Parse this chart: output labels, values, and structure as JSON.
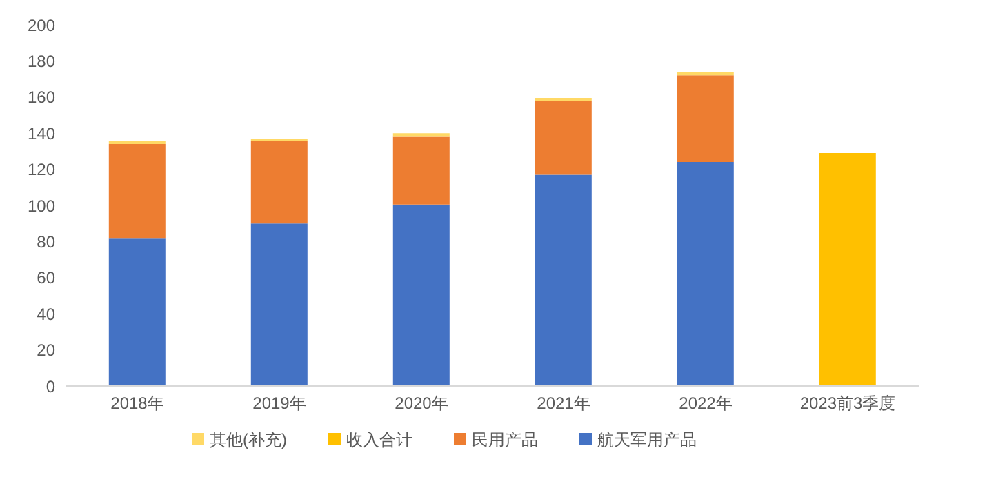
{
  "chart_data": {
    "type": "bar",
    "stacked": true,
    "categories": [
      "2018年",
      "2019年",
      "2020年",
      "2021年",
      "2022年",
      "2023前3季度"
    ],
    "series": [
      {
        "name": "航天军用产品",
        "color": "#4472c4",
        "values": [
          82,
          90,
          100.5,
          117,
          124,
          null
        ]
      },
      {
        "name": "民用产品",
        "color": "#ed7d31",
        "values": [
          52,
          45.5,
          37.5,
          41,
          48,
          null
        ]
      },
      {
        "name": "其他(补充)",
        "color": "#ffd966",
        "values": [
          1.5,
          1.5,
          2,
          1.5,
          2,
          null
        ]
      },
      {
        "name": "收入合计",
        "color": "#ffc000",
        "values": [
          null,
          null,
          null,
          null,
          null,
          129
        ]
      }
    ],
    "ylim": [
      0,
      200
    ],
    "yticks": [
      0,
      20,
      40,
      60,
      80,
      100,
      120,
      140,
      160,
      180,
      200
    ],
    "grid": false,
    "legend": "bottom"
  }
}
